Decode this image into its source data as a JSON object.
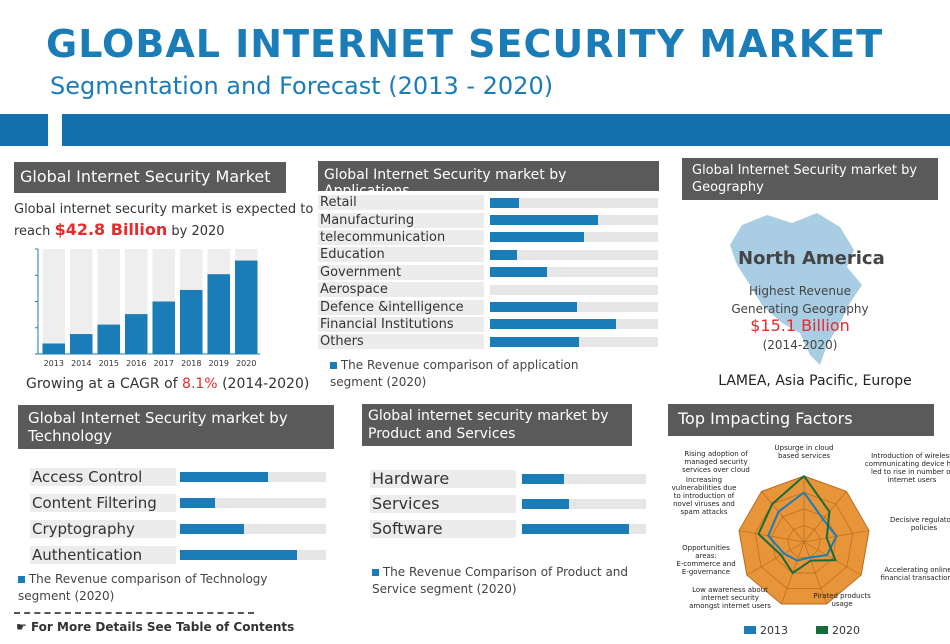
{
  "header": {
    "title": "GLOBAL INTERNET SECURITY MARKET",
    "subtitle": "Segmentation and Forecast (2013 - 2020)"
  },
  "market": {
    "heading": "Global Internet Security Market",
    "text_pre": "Global internet security market is expected to reach",
    "value": "$42.8 Billion",
    "text_post": "by 2020",
    "cagr_pre": "Growing at a CAGR of",
    "cagr_value": "8.1%",
    "cagr_post": "(2014-2020)"
  },
  "applications": {
    "heading": "Global Internet Security market by Applications",
    "legend": "The Revenue comparison of application segment (2020)"
  },
  "geography": {
    "heading": "Global Internet Security market by Geography",
    "region": "North America",
    "line1": "Highest Revenue",
    "line2": "Generating Geography",
    "value": "$15.1 Billion",
    "period": "(2014-2020)",
    "others": "LAMEA, Asia Pacific, Europe"
  },
  "technology": {
    "heading": "Global Internet Security market by Technology",
    "legend": "The Revenue comparison of Technology segment (2020)"
  },
  "products": {
    "heading": "Global internet security market by Product and Services",
    "legend": "The Revenue Comparison of Product and Service segment (2020)"
  },
  "factors": {
    "heading": "Top Impacting Factors"
  },
  "footer": {
    "more": "For More Details See Table of Contents"
  },
  "colors": {
    "primary": "#1a7db8",
    "accent": "#e52b2b",
    "header": "#5a5a5a",
    "radar_fill": "#e8953a",
    "series_2020": "#1a6b3a"
  },
  "chart_data": [
    {
      "type": "bar",
      "id": "market-growth",
      "categories": [
        "2013",
        "2014",
        "2015",
        "2016",
        "2017",
        "2018",
        "2019",
        "2020"
      ],
      "values": [
        10,
        19,
        28,
        38,
        50,
        61,
        76,
        89
      ],
      "ylim": [
        0,
        100
      ]
    },
    {
      "type": "bar",
      "id": "applications",
      "orientation": "horizontal",
      "categories": [
        "Retail",
        "Manufacturing",
        "telecommunication",
        "Education",
        "Government",
        "Aerospace",
        "Defence &intelligence",
        "Financial Institutions",
        "Others"
      ],
      "values": [
        17,
        64,
        56,
        16,
        34,
        0,
        52,
        75,
        53
      ],
      "xlim": [
        0,
        100
      ]
    },
    {
      "type": "bar",
      "id": "technology",
      "orientation": "horizontal",
      "categories": [
        "Access Control",
        "Content Filtering",
        "Cryptography",
        "Authentication"
      ],
      "values": [
        60,
        24,
        44,
        80
      ],
      "xlim": [
        0,
        100
      ]
    },
    {
      "type": "bar",
      "id": "products",
      "orientation": "horizontal",
      "categories": [
        "Hardware",
        "Services",
        "Software"
      ],
      "values": [
        34,
        38,
        86
      ],
      "xlim": [
        0,
        100
      ]
    },
    {
      "type": "radar",
      "id": "factors",
      "axes": [
        "Upsurge in cloud based services",
        "Introduction of wireless communicating device has led to rise in number of internet users",
        "Decisive regulatory policies",
        "Accelerating online financial transactions",
        "Pirated products usage",
        "Low awareness about internet security amongst internet users",
        "Opportunities areas: E-commerce and E-governance",
        "Increasing vulnerabilities due to introduction of novel viruses and spam attacks",
        "Rising adoption of managed security services over cloud"
      ],
      "series": [
        {
          "name": "2013",
          "values": [
            0.75,
            0.45,
            0.5,
            0.4,
            0.25,
            0.3,
            0.35,
            0.55,
            0.6
          ]
        },
        {
          "name": "2020",
          "values": [
            1.0,
            0.6,
            0.35,
            0.55,
            0.3,
            0.5,
            0.4,
            0.7,
            0.75
          ]
        }
      ],
      "rlim": [
        0,
        1
      ]
    }
  ]
}
